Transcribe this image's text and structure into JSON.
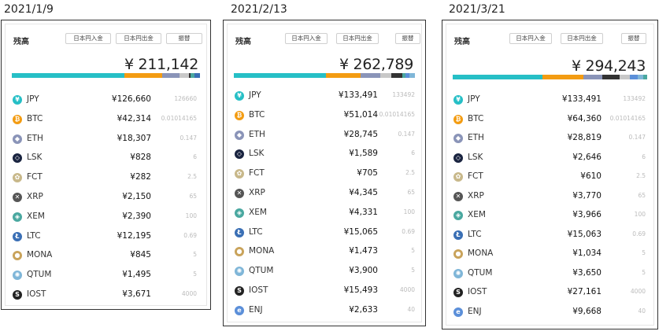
{
  "buttons": {
    "deposit": "日本円入金",
    "withdraw": "日本円出金",
    "transfer": "振替"
  },
  "title": "残高",
  "colors": {
    "JPY": "#26bfc6",
    "BTC": "#f39c12",
    "ETH": "#8a94b8",
    "LSK": "#1a2440",
    "FCT": "#c8b88a",
    "XRP": "#555555",
    "XEM": "#4aa8a0",
    "LTC": "#3a6fb5",
    "MONA": "#c9a35b",
    "QTUM": "#7fb6d8",
    "IOST": "#222222",
    "ENJ": "#5b8fd9"
  },
  "panels": [
    {
      "date": "2021/1/9",
      "total": "¥ 211,142",
      "bar": [
        {
          "c": "#26bfc6",
          "w": 0.6
        },
        {
          "c": "#f39c12",
          "w": 0.2
        },
        {
          "c": "#8a94b8",
          "w": 0.09
        },
        {
          "c": "#c8c8c8",
          "w": 0.05
        },
        {
          "c": "#333333",
          "w": 0.01
        },
        {
          "c": "#4aa8a0",
          "w": 0.02
        },
        {
          "c": "#3a6fb5",
          "w": 0.03
        }
      ],
      "rows": [
        {
          "sym": "JPY",
          "val": "¥126,660",
          "qty": "126660"
        },
        {
          "sym": "BTC",
          "val": "¥42,314",
          "qty": "0.01014165"
        },
        {
          "sym": "ETH",
          "val": "¥18,307",
          "qty": "0.147"
        },
        {
          "sym": "LSK",
          "val": "¥828",
          "qty": "6"
        },
        {
          "sym": "FCT",
          "val": "¥282",
          "qty": "2.5"
        },
        {
          "sym": "XRP",
          "val": "¥2,150",
          "qty": "65"
        },
        {
          "sym": "XEM",
          "val": "¥2,390",
          "qty": "100"
        },
        {
          "sym": "LTC",
          "val": "¥12,195",
          "qty": "0.69"
        },
        {
          "sym": "MONA",
          "val": "¥845",
          "qty": "5"
        },
        {
          "sym": "QTUM",
          "val": "¥1,495",
          "qty": "5"
        },
        {
          "sym": "IOST",
          "val": "¥3,671",
          "qty": "4000"
        }
      ]
    },
    {
      "date": "2021/2/13",
      "total": "¥ 262,789",
      "bar": [
        {
          "c": "#26bfc6",
          "w": 0.51
        },
        {
          "c": "#f39c12",
          "w": 0.19
        },
        {
          "c": "#8a94b8",
          "w": 0.11
        },
        {
          "c": "#c8c8c8",
          "w": 0.06
        },
        {
          "c": "#333333",
          "w": 0.06
        },
        {
          "c": "#4aa8a0",
          "w": 0.02
        },
        {
          "c": "#5b8fd9",
          "w": 0.02
        },
        {
          "c": "#7fb6d8",
          "w": 0.03
        }
      ],
      "rows": [
        {
          "sym": "JPY",
          "val": "¥133,491",
          "qty": "133492"
        },
        {
          "sym": "BTC",
          "val": "¥51,014",
          "qty": "0.01014165"
        },
        {
          "sym": "ETH",
          "val": "¥28,745",
          "qty": "0.147"
        },
        {
          "sym": "LSK",
          "val": "¥1,589",
          "qty": "6"
        },
        {
          "sym": "FCT",
          "val": "¥705",
          "qty": "2.5"
        },
        {
          "sym": "XRP",
          "val": "¥4,345",
          "qty": "65"
        },
        {
          "sym": "XEM",
          "val": "¥4,331",
          "qty": "100"
        },
        {
          "sym": "LTC",
          "val": "¥15,065",
          "qty": "0.69"
        },
        {
          "sym": "MONA",
          "val": "¥1,473",
          "qty": "5"
        },
        {
          "sym": "QTUM",
          "val": "¥3,900",
          "qty": "5"
        },
        {
          "sym": "IOST",
          "val": "¥15,493",
          "qty": "4000"
        },
        {
          "sym": "ENJ",
          "val": "¥2,633",
          "qty": "40"
        }
      ]
    },
    {
      "date": "2021/3/21",
      "total": "¥ 294,243",
      "bar": [
        {
          "c": "#26bfc6",
          "w": 0.46
        },
        {
          "c": "#f39c12",
          "w": 0.21
        },
        {
          "c": "#8a94b8",
          "w": 0.1
        },
        {
          "c": "#333333",
          "w": 0.09
        },
        {
          "c": "#c8c8c8",
          "w": 0.05
        },
        {
          "c": "#5b8fd9",
          "w": 0.04
        },
        {
          "c": "#7fb6d8",
          "w": 0.03
        },
        {
          "c": "#4aa8a0",
          "w": 0.02
        }
      ],
      "rows": [
        {
          "sym": "JPY",
          "val": "¥133,491",
          "qty": "133492"
        },
        {
          "sym": "BTC",
          "val": "¥64,360",
          "qty": "0.01014165"
        },
        {
          "sym": "ETH",
          "val": "¥28,819",
          "qty": "0.147"
        },
        {
          "sym": "LSK",
          "val": "¥2,646",
          "qty": "6"
        },
        {
          "sym": "FCT",
          "val": "¥610",
          "qty": "2.5"
        },
        {
          "sym": "XRP",
          "val": "¥3,770",
          "qty": "65"
        },
        {
          "sym": "XEM",
          "val": "¥3,966",
          "qty": "100"
        },
        {
          "sym": "LTC",
          "val": "¥15,063",
          "qty": "0.69"
        },
        {
          "sym": "MONA",
          "val": "¥1,034",
          "qty": "5"
        },
        {
          "sym": "QTUM",
          "val": "¥3,650",
          "qty": "5"
        },
        {
          "sym": "IOST",
          "val": "¥27,161",
          "qty": "4000"
        },
        {
          "sym": "ENJ",
          "val": "¥9,668",
          "qty": "40"
        }
      ]
    }
  ]
}
